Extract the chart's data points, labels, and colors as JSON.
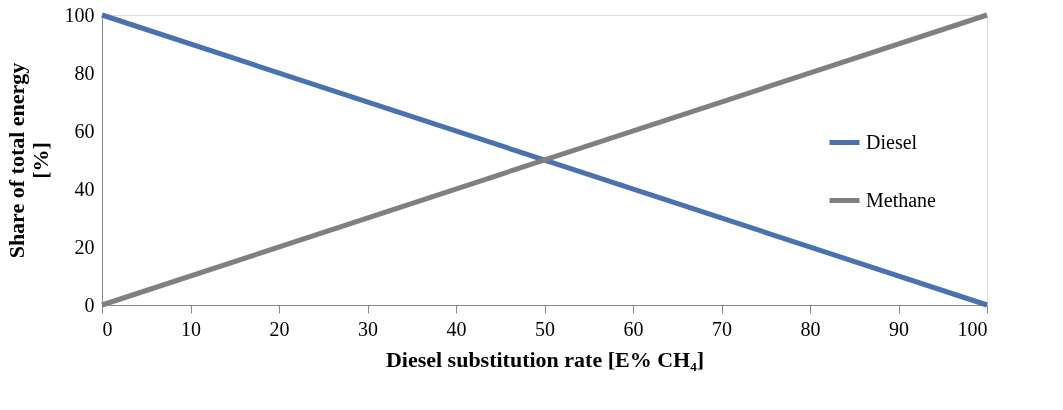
{
  "chart_data": {
    "type": "line",
    "xlabel": "Diesel substitution rate [E% CH₄]",
    "ylabel": "Share of total energy\n[%]",
    "x": [
      0,
      100
    ],
    "series": [
      {
        "name": "Diesel",
        "color": "#4a72b0",
        "values": [
          100,
          0
        ]
      },
      {
        "name": "Methane",
        "color": "#808080",
        "values": [
          0,
          100
        ]
      }
    ],
    "xlim": [
      0,
      100
    ],
    "xticks": [
      0,
      10,
      20,
      30,
      40,
      50,
      60,
      70,
      80,
      90,
      100
    ],
    "ylim": [
      0,
      100
    ],
    "yticks": [
      0,
      20,
      40,
      60,
      80,
      100
    ],
    "grid": false,
    "legend": "right",
    "marker": "none",
    "line_style": "solid"
  }
}
